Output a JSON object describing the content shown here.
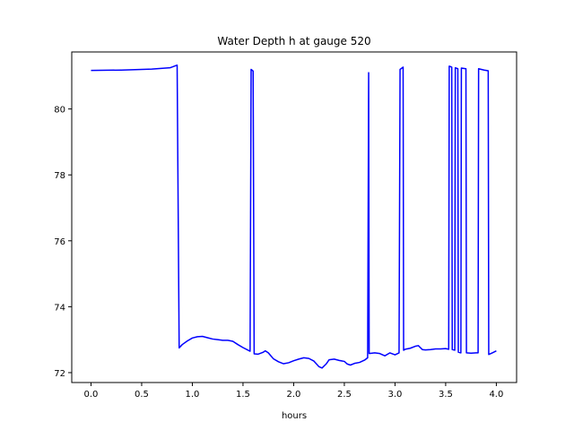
{
  "chart_data": {
    "type": "line",
    "title": "Water Depth h at gauge 520",
    "xlabel": "hours",
    "ylabel": "",
    "xlim": [
      -0.19,
      4.2
    ],
    "ylim": [
      71.7,
      81.73
    ],
    "x_ticks": [
      0.0,
      0.5,
      1.0,
      1.5,
      2.0,
      2.5,
      3.0,
      3.5,
      4.0
    ],
    "x_tick_labels": [
      "0.0",
      "0.5",
      "1.0",
      "1.5",
      "2.0",
      "2.5",
      "3.0",
      "3.5",
      "4.0"
    ],
    "y_ticks": [
      72,
      74,
      76,
      78,
      80
    ],
    "y_tick_labels": [
      "72",
      "74",
      "76",
      "78",
      "80"
    ],
    "grid": false,
    "line_color": "#0000ff",
    "series": [
      {
        "points": [
          [
            0.0,
            81.17
          ],
          [
            0.3,
            81.18
          ],
          [
            0.6,
            81.21
          ],
          [
            0.78,
            81.25
          ],
          [
            0.85,
            81.33
          ],
          [
            0.87,
            72.75
          ],
          [
            0.9,
            72.85
          ],
          [
            0.95,
            72.96
          ],
          [
            1.0,
            73.05
          ],
          [
            1.05,
            73.09
          ],
          [
            1.1,
            73.1
          ],
          [
            1.15,
            73.06
          ],
          [
            1.2,
            73.02
          ],
          [
            1.25,
            73.0
          ],
          [
            1.3,
            72.98
          ],
          [
            1.35,
            72.98
          ],
          [
            1.4,
            72.95
          ],
          [
            1.45,
            72.85
          ],
          [
            1.5,
            72.76
          ],
          [
            1.57,
            72.65
          ],
          [
            1.58,
            81.2
          ],
          [
            1.6,
            81.15
          ],
          [
            1.61,
            72.57
          ],
          [
            1.65,
            72.56
          ],
          [
            1.7,
            72.62
          ],
          [
            1.72,
            72.66
          ],
          [
            1.75,
            72.6
          ],
          [
            1.8,
            72.42
          ],
          [
            1.85,
            72.33
          ],
          [
            1.9,
            72.27
          ],
          [
            1.95,
            72.3
          ],
          [
            2.0,
            72.36
          ],
          [
            2.05,
            72.41
          ],
          [
            2.1,
            72.45
          ],
          [
            2.15,
            72.43
          ],
          [
            2.2,
            72.35
          ],
          [
            2.25,
            72.18
          ],
          [
            2.28,
            72.14
          ],
          [
            2.32,
            72.26
          ],
          [
            2.35,
            72.39
          ],
          [
            2.4,
            72.41
          ],
          [
            2.45,
            72.37
          ],
          [
            2.5,
            72.34
          ],
          [
            2.53,
            72.26
          ],
          [
            2.56,
            72.23
          ],
          [
            2.6,
            72.28
          ],
          [
            2.65,
            72.31
          ],
          [
            2.7,
            72.38
          ],
          [
            2.73,
            72.45
          ],
          [
            2.74,
            81.1
          ],
          [
            2.745,
            72.58
          ],
          [
            2.8,
            72.6
          ],
          [
            2.85,
            72.58
          ],
          [
            2.9,
            72.51
          ],
          [
            2.95,
            72.6
          ],
          [
            3.0,
            72.54
          ],
          [
            3.04,
            72.6
          ],
          [
            3.05,
            81.2
          ],
          [
            3.08,
            81.27
          ],
          [
            3.085,
            72.68
          ],
          [
            3.1,
            72.71
          ],
          [
            3.15,
            72.74
          ],
          [
            3.2,
            72.8
          ],
          [
            3.23,
            72.82
          ],
          [
            3.27,
            72.7
          ],
          [
            3.3,
            72.69
          ],
          [
            3.35,
            72.7
          ],
          [
            3.4,
            72.72
          ],
          [
            3.45,
            72.72
          ],
          [
            3.5,
            72.73
          ],
          [
            3.53,
            72.71
          ],
          [
            3.535,
            81.3
          ],
          [
            3.56,
            81.27
          ],
          [
            3.565,
            72.7
          ],
          [
            3.59,
            72.68
          ],
          [
            3.595,
            81.25
          ],
          [
            3.62,
            81.22
          ],
          [
            3.625,
            72.62
          ],
          [
            3.65,
            72.6
          ],
          [
            3.655,
            81.24
          ],
          [
            3.7,
            81.22
          ],
          [
            3.705,
            72.6
          ],
          [
            3.75,
            72.59
          ],
          [
            3.8,
            72.6
          ],
          [
            3.82,
            72.6
          ],
          [
            3.825,
            81.22
          ],
          [
            3.88,
            81.18
          ],
          [
            3.92,
            81.16
          ],
          [
            3.925,
            72.55
          ],
          [
            3.96,
            72.6
          ],
          [
            4.0,
            72.66
          ]
        ]
      }
    ]
  }
}
